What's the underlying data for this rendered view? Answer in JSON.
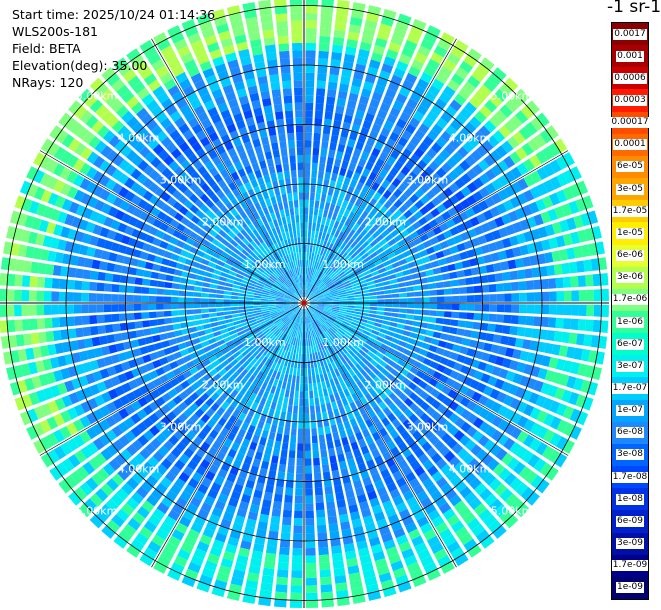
{
  "info": {
    "start_time": "Start time: 2025/10/24 01:14:36",
    "instrument": "WLS200s-181",
    "field": "Field: BETA",
    "elevation": "Elevation(deg): 35.00",
    "nrays": "NRays: 120"
  },
  "colorbar": {
    "title": "-1 sr-1",
    "labels": [
      "0.0017",
      "0.001",
      "0.0006",
      "0.0003",
      "0.00017",
      "0.0001",
      "6e-05",
      "3e-05",
      "1.7e-05",
      "1e-05",
      "6e-06",
      "3e-06",
      "1.7e-06",
      "1e-06",
      "6e-07",
      "3e-07",
      "1.7e-07",
      "1e-07",
      "6e-08",
      "3e-08",
      "1.7e-08",
      "1e-08",
      "6e-09",
      "3e-09",
      "1.7e-09",
      "1e-09"
    ],
    "colors": [
      "#8b0000",
      "#a80000",
      "#cc0000",
      "#ff1a00",
      "#ff4d00",
      "#ff6a00",
      "#ff8c00",
      "#ffa500",
      "#ffcc00",
      "#ffee00",
      "#e6ff33",
      "#b3ff4d",
      "#80ff80",
      "#33ff99",
      "#00ffcc",
      "#00f0f0",
      "#00ccff",
      "#00a6ff",
      "#1e88ff",
      "#0066ff",
      "#0047ff",
      "#0033e6",
      "#0020cc",
      "#0010a6",
      "#00008b",
      "#000070"
    ]
  },
  "range_labels": [
    "1.00km",
    "2.00km",
    "3.00km",
    "4.00km",
    "5.00km"
  ],
  "ppi": {
    "center_value": "ppi-center",
    "ring_values_km": [
      1,
      2,
      3,
      4,
      5
    ]
  }
}
